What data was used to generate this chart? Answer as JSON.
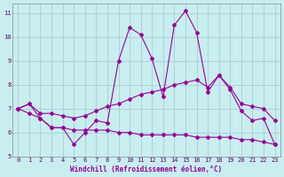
{
  "title": "",
  "xlabel": "Windchill (Refroidissement éolien,°C)",
  "ylabel": "",
  "bg_color": "#c8eef0",
  "grid_color": "#aaccd0",
  "line_color": "#990099",
  "xlim": [
    -0.5,
    23.5
  ],
  "ylim": [
    5,
    11.4
  ],
  "yticks": [
    5,
    6,
    7,
    8,
    9,
    10,
    11
  ],
  "xticks": [
    0,
    1,
    2,
    3,
    4,
    5,
    6,
    7,
    8,
    9,
    10,
    11,
    12,
    13,
    14,
    15,
    16,
    17,
    18,
    19,
    20,
    21,
    22,
    23
  ],
  "line1_x": [
    0,
    1,
    2,
    3,
    4,
    5,
    6,
    7,
    8,
    9,
    10,
    11,
    12,
    13,
    14,
    15,
    16,
    17,
    18,
    19,
    20,
    21,
    22,
    23
  ],
  "line1_y": [
    7.0,
    7.2,
    6.6,
    6.2,
    6.2,
    5.5,
    6.0,
    6.5,
    6.4,
    9.0,
    10.4,
    10.1,
    9.1,
    7.5,
    10.5,
    11.1,
    10.2,
    7.7,
    8.4,
    7.8,
    6.9,
    6.5,
    6.6,
    5.5
  ],
  "line2_x": [
    0,
    1,
    2,
    3,
    4,
    5,
    6,
    7,
    8,
    9,
    10,
    11,
    12,
    13,
    14,
    15,
    16,
    17,
    18,
    19,
    20,
    21,
    22,
    23
  ],
  "line2_y": [
    7.0,
    7.2,
    6.8,
    6.8,
    6.7,
    6.6,
    6.7,
    6.9,
    7.1,
    7.2,
    7.4,
    7.6,
    7.7,
    7.8,
    8.0,
    8.1,
    8.2,
    7.9,
    8.4,
    7.9,
    7.2,
    7.1,
    7.0,
    6.5
  ],
  "line3_x": [
    0,
    1,
    2,
    3,
    4,
    5,
    6,
    7,
    8,
    9,
    10,
    11,
    12,
    13,
    14,
    15,
    16,
    17,
    18,
    19,
    20,
    21,
    22,
    23
  ],
  "line3_y": [
    7.0,
    6.8,
    6.6,
    6.2,
    6.2,
    6.1,
    6.1,
    6.1,
    6.1,
    6.0,
    6.0,
    5.9,
    5.9,
    5.9,
    5.9,
    5.9,
    5.8,
    5.8,
    5.8,
    5.8,
    5.7,
    5.7,
    5.6,
    5.5
  ],
  "marker": "D",
  "marker_size": 2.0,
  "linewidth": 0.8
}
